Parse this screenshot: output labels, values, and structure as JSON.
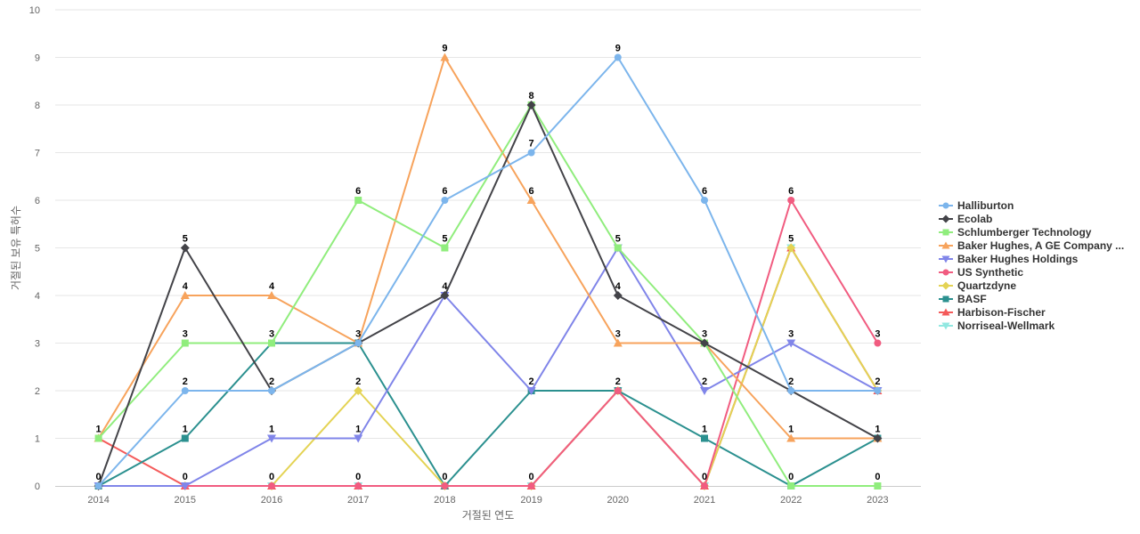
{
  "chart_data": {
    "type": "line",
    "title": "",
    "xlabel": "거절된 연도",
    "ylabel": "거절된 보유 특허수",
    "x": [
      "2014",
      "2015",
      "2016",
      "2017",
      "2018",
      "2019",
      "2020",
      "2021",
      "2022",
      "2023"
    ],
    "ylim": [
      0,
      10
    ],
    "yticks": [
      0,
      1,
      2,
      3,
      4,
      5,
      6,
      7,
      8,
      9,
      10
    ],
    "grid": "horizontal",
    "legend_position": "right",
    "data_labels": true,
    "series": [
      {
        "name": "Halliburton",
        "color": "#7cb5ec",
        "marker": "circle",
        "values": [
          0,
          2,
          2,
          3,
          6,
          7,
          9,
          6,
          2,
          2
        ]
      },
      {
        "name": "Ecolab",
        "color": "#434348",
        "marker": "diamond",
        "values": [
          0,
          5,
          2,
          3,
          4,
          8,
          4,
          3,
          2,
          1
        ]
      },
      {
        "name": "Schlumberger Technology",
        "color": "#90ed7d",
        "marker": "square",
        "values": [
          1,
          3,
          3,
          6,
          5,
          8,
          5,
          3,
          0,
          0
        ]
      },
      {
        "name": "Baker Hughes, A GE Company ...",
        "color": "#f7a35c",
        "marker": "triangle",
        "values": [
          1,
          4,
          4,
          3,
          9,
          6,
          3,
          3,
          1,
          1
        ]
      },
      {
        "name": "Baker Hughes Holdings",
        "color": "#8085e9",
        "marker": "triangle-down",
        "values": [
          0,
          0,
          1,
          1,
          4,
          2,
          5,
          2,
          3,
          2
        ]
      },
      {
        "name": "US Synthetic",
        "color": "#f15c80",
        "marker": "circle",
        "values": [
          0,
          0,
          0,
          0,
          0,
          0,
          2,
          0,
          6,
          3
        ]
      },
      {
        "name": "Quartzdyne",
        "color": "#e4d354",
        "marker": "diamond",
        "values": [
          0,
          0,
          0,
          2,
          0,
          0,
          2,
          0,
          5,
          2
        ]
      },
      {
        "name": "BASF",
        "color": "#2b908f",
        "marker": "square",
        "values": [
          0,
          1,
          3,
          3,
          0,
          2,
          2,
          1,
          0,
          1
        ]
      },
      {
        "name": "Harbison-Fischer",
        "color": "#f45b5b",
        "marker": "triangle",
        "values": [
          1,
          0,
          0,
          0,
          0,
          0,
          2,
          0,
          5,
          2
        ]
      },
      {
        "name": "Norriseal-Wellmark",
        "color": "#91e8e1",
        "marker": "triangle-down",
        "values": [
          0,
          0,
          0,
          0,
          0,
          0,
          2,
          0,
          5,
          2
        ]
      }
    ]
  }
}
